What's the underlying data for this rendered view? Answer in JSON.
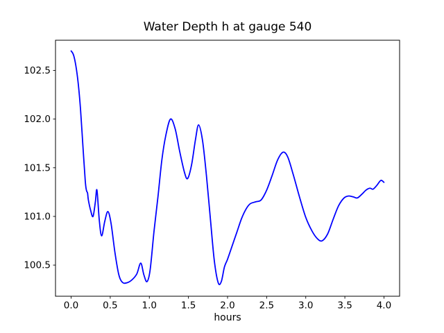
{
  "chart_data": {
    "type": "line",
    "title": "Water Depth h at gauge 540",
    "xlabel": "hours",
    "ylabel": "",
    "grid": false,
    "legend": false,
    "background_color": "#ffffff",
    "axis_color": "#000000",
    "text_color": "#000000",
    "xlim": [
      -0.2,
      4.2
    ],
    "ylim": [
      100.18,
      102.81
    ],
    "xticks": {
      "values": [
        0,
        0.5,
        1,
        1.5,
        2,
        2.5,
        3,
        3.5,
        4
      ],
      "labels": [
        "0.0",
        "0.5",
        "1.0",
        "1.5",
        "2.0",
        "2.5",
        "3.0",
        "3.5",
        "4.0"
      ]
    },
    "yticks": {
      "values": [
        100.5,
        101.0,
        101.5,
        102.0,
        102.5
      ],
      "labels": [
        "100.5",
        "101.0",
        "101.5",
        "102.0",
        "102.5"
      ]
    },
    "series": [
      {
        "name": "water depth h at gauge 540",
        "color": "#0000ff",
        "line_width": 1.8,
        "points": [
          [
            0.0,
            102.7
          ],
          [
            0.03,
            102.66
          ],
          [
            0.06,
            102.55
          ],
          [
            0.09,
            102.37
          ],
          [
            0.12,
            102.1
          ],
          [
            0.15,
            101.73
          ],
          [
            0.18,
            101.37
          ],
          [
            0.195,
            101.27
          ],
          [
            0.21,
            101.24
          ],
          [
            0.22,
            101.17
          ],
          [
            0.25,
            101.06
          ],
          [
            0.28,
            101.0
          ],
          [
            0.31,
            101.15
          ],
          [
            0.33,
            101.27
          ],
          [
            0.36,
            100.96
          ],
          [
            0.39,
            100.8
          ],
          [
            0.43,
            100.95
          ],
          [
            0.47,
            101.05
          ],
          [
            0.51,
            100.93
          ],
          [
            0.56,
            100.63
          ],
          [
            0.61,
            100.4
          ],
          [
            0.66,
            100.32
          ],
          [
            0.72,
            100.32
          ],
          [
            0.78,
            100.35
          ],
          [
            0.84,
            100.41
          ],
          [
            0.89,
            100.52
          ],
          [
            0.93,
            100.4
          ],
          [
            0.97,
            100.33
          ],
          [
            1.01,
            100.45
          ],
          [
            1.06,
            100.85
          ],
          [
            1.11,
            101.2
          ],
          [
            1.16,
            101.58
          ],
          [
            1.21,
            101.83
          ],
          [
            1.27,
            102.0
          ],
          [
            1.33,
            101.9
          ],
          [
            1.39,
            101.66
          ],
          [
            1.45,
            101.45
          ],
          [
            1.49,
            101.39
          ],
          [
            1.54,
            101.53
          ],
          [
            1.59,
            101.79
          ],
          [
            1.63,
            101.94
          ],
          [
            1.68,
            101.78
          ],
          [
            1.73,
            101.42
          ],
          [
            1.78,
            100.98
          ],
          [
            1.83,
            100.55
          ],
          [
            1.88,
            100.32
          ],
          [
            1.92,
            100.33
          ],
          [
            1.96,
            100.48
          ],
          [
            2.0,
            100.56
          ],
          [
            2.06,
            100.7
          ],
          [
            2.12,
            100.84
          ],
          [
            2.18,
            100.98
          ],
          [
            2.24,
            101.08
          ],
          [
            2.29,
            101.13
          ],
          [
            2.36,
            101.15
          ],
          [
            2.43,
            101.17
          ],
          [
            2.5,
            101.27
          ],
          [
            2.57,
            101.42
          ],
          [
            2.64,
            101.58
          ],
          [
            2.71,
            101.66
          ],
          [
            2.77,
            101.61
          ],
          [
            2.84,
            101.43
          ],
          [
            2.92,
            101.2
          ],
          [
            3.0,
            100.99
          ],
          [
            3.08,
            100.85
          ],
          [
            3.15,
            100.77
          ],
          [
            3.21,
            100.75
          ],
          [
            3.28,
            100.82
          ],
          [
            3.35,
            100.97
          ],
          [
            3.42,
            101.11
          ],
          [
            3.49,
            101.19
          ],
          [
            3.55,
            101.21
          ],
          [
            3.61,
            101.2
          ],
          [
            3.66,
            101.19
          ],
          [
            3.72,
            101.23
          ],
          [
            3.77,
            101.27
          ],
          [
            3.82,
            101.29
          ],
          [
            3.86,
            101.28
          ],
          [
            3.91,
            101.32
          ],
          [
            3.96,
            101.37
          ],
          [
            4.0,
            101.35
          ]
        ]
      }
    ]
  }
}
